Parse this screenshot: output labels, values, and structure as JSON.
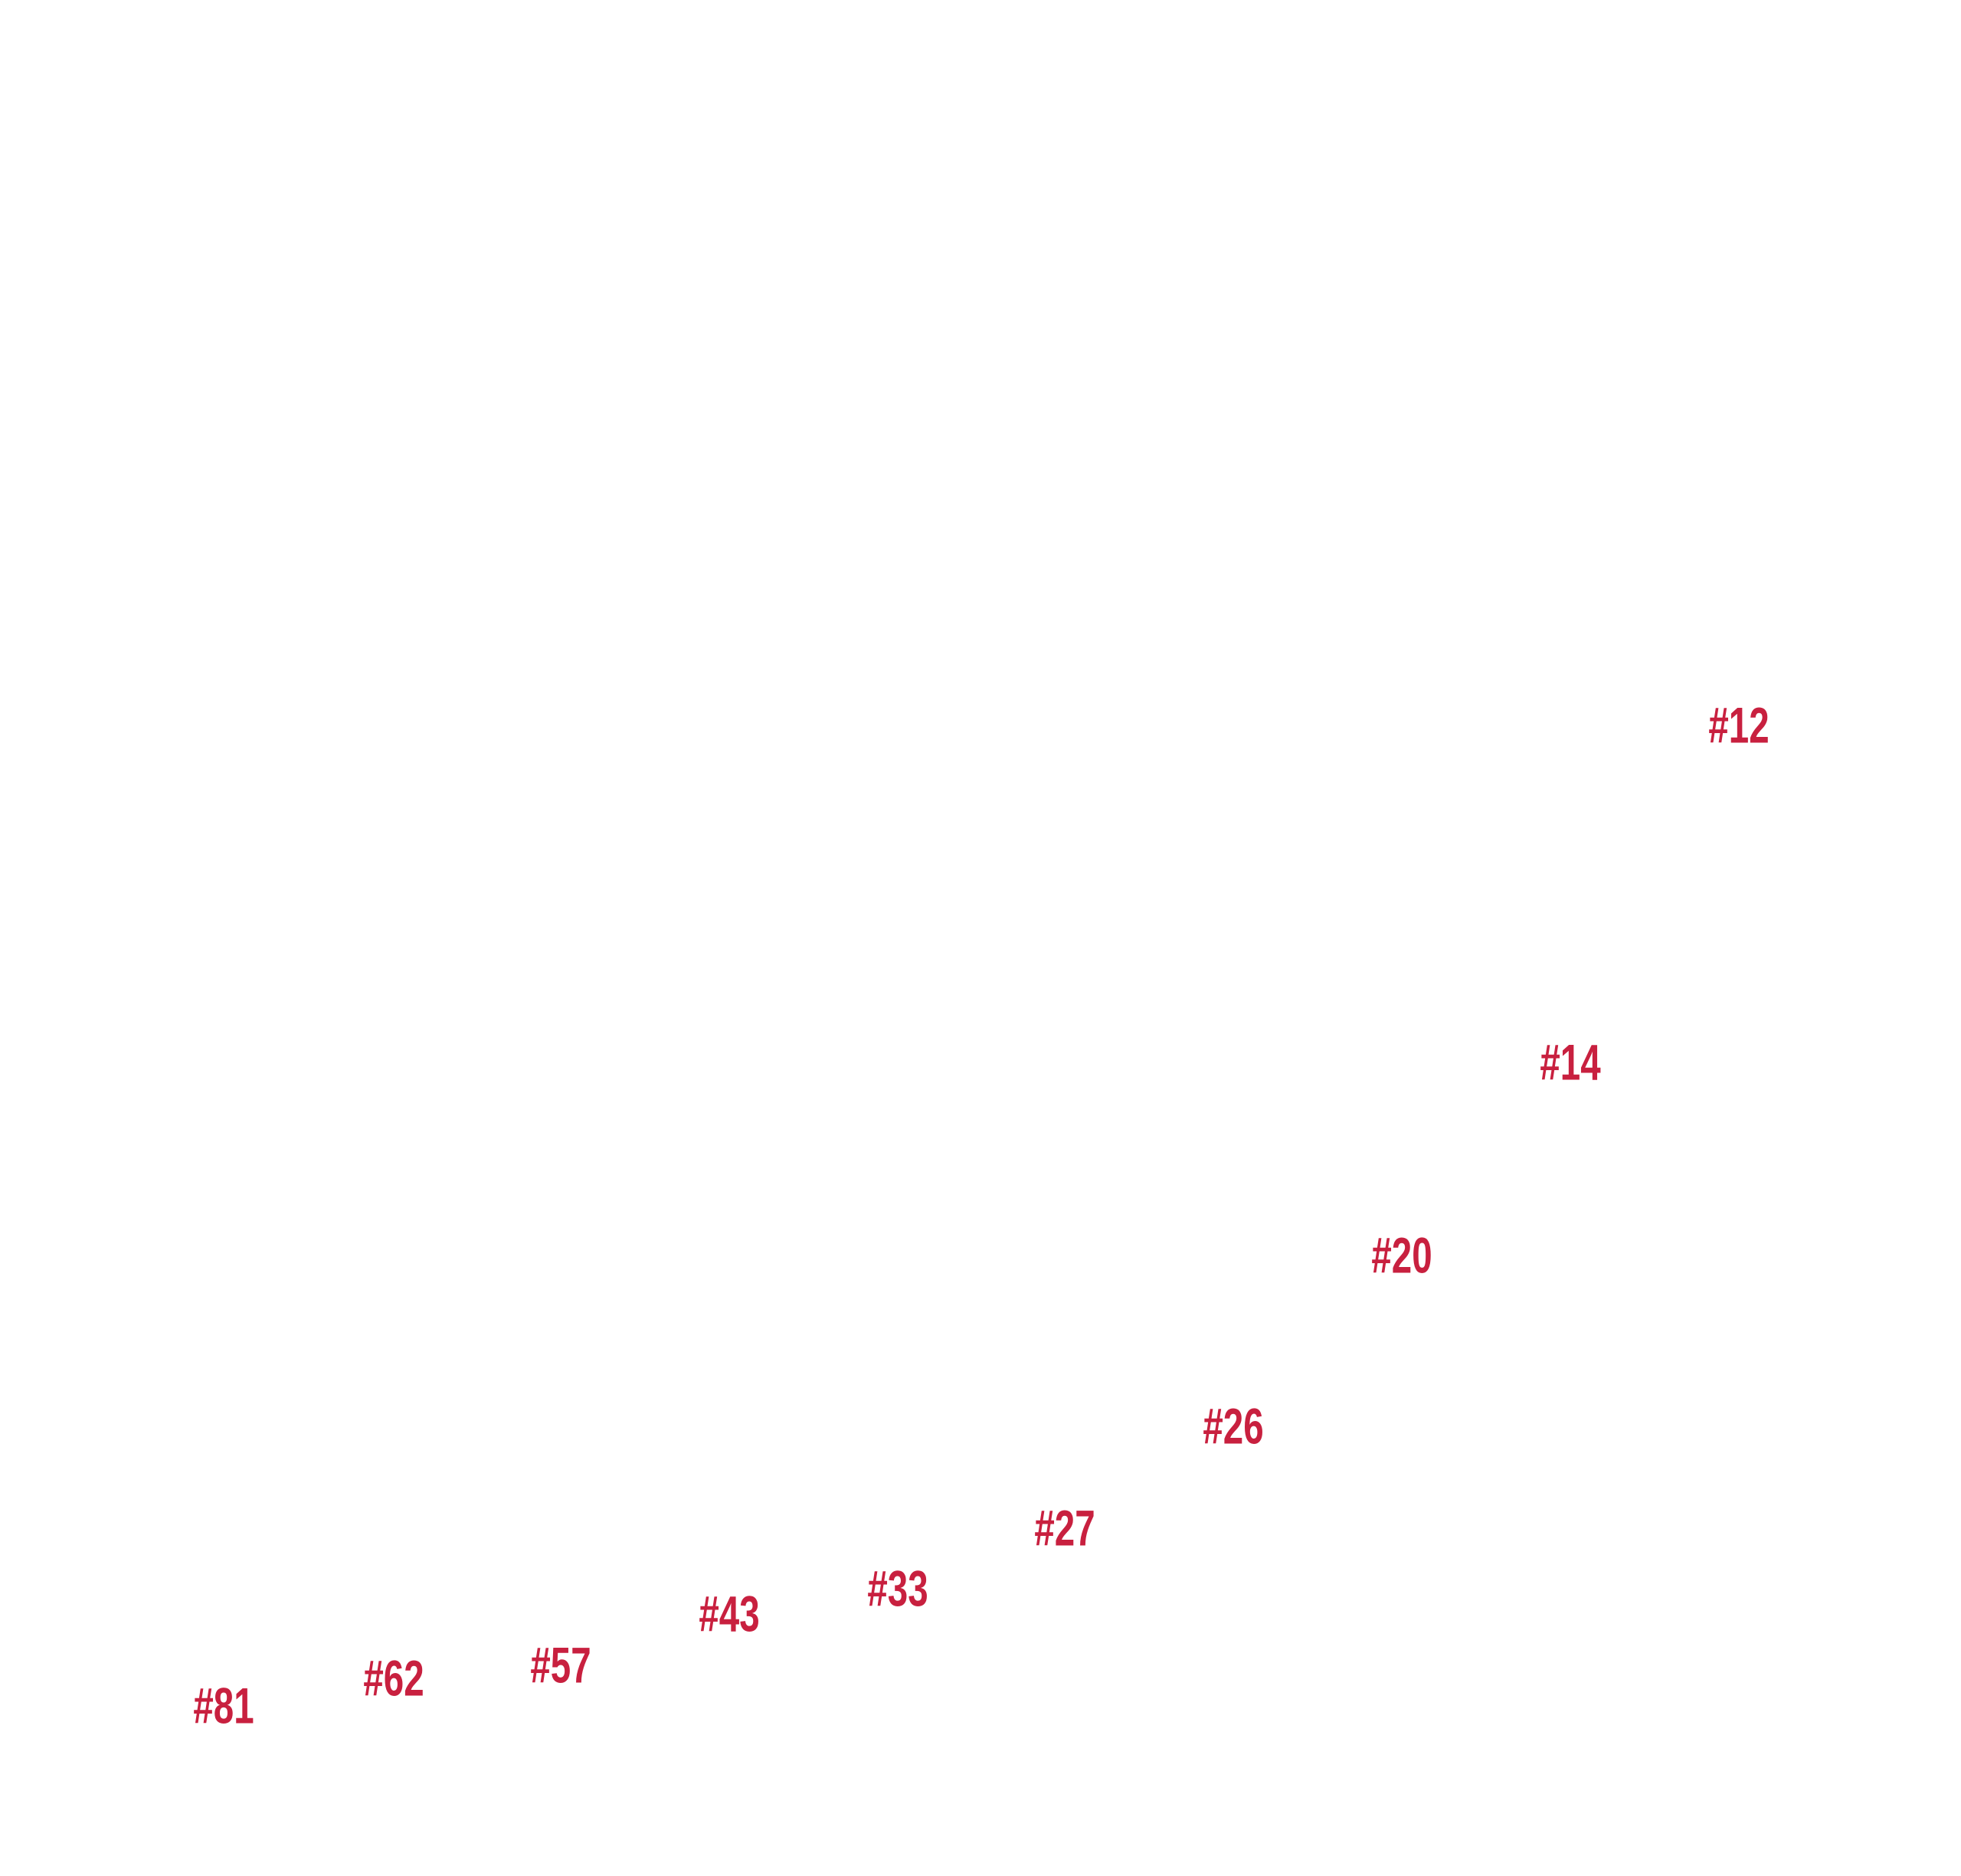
{
  "labels": [
    "#81",
    "#62",
    "#57",
    "#43",
    "#33",
    "#27",
    "#26",
    "#20",
    "#14",
    "#12"
  ]
}
